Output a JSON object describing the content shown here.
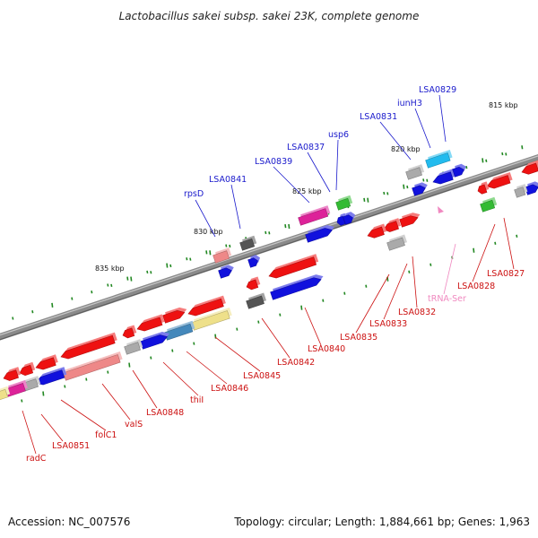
{
  "title": "Lactobacillus sakei subsp. sakei 23K, complete genome",
  "footer": {
    "accession": "Accession: NC_007576",
    "summary": "Topology: circular; Length: 1,884,661 bp; Genes: 1,963"
  },
  "ticks": [
    "815 kbp",
    "820 kbp",
    "825 kbp",
    "830 kbp",
    "835 kbp"
  ],
  "labels_top": [
    "LSA0829",
    "iunH3",
    "LSA0831",
    "usp6",
    "LSA0837",
    "LSA0839",
    "LSA0841",
    "rpsD"
  ],
  "labels_bottom": [
    "LSA0827",
    "LSA0828",
    "tRNA-Ser",
    "LSA0832",
    "LSA0833",
    "LSA0835",
    "LSA0840",
    "LSA0842",
    "LSA0845",
    "LSA0846",
    "thiI",
    "LSA0848",
    "valS",
    "folC1",
    "LSA0851",
    "radC"
  ],
  "colors": {
    "backbone": "#7a7a7a",
    "gene_red": "#ee1111",
    "gene_blue": "#1111dd",
    "gene_pink_light": "#ee8888",
    "gene_magenta": "#dd2299",
    "gene_yellow": "#eee08a",
    "gene_cyan": "#22bbee",
    "gene_green": "#33bb33",
    "gene_gray": "#aaaaaa",
    "gene_dark": "#555555",
    "gene_steel": "#4488bb",
    "trna": "#f088c0",
    "gc_dot": "#228822"
  }
}
